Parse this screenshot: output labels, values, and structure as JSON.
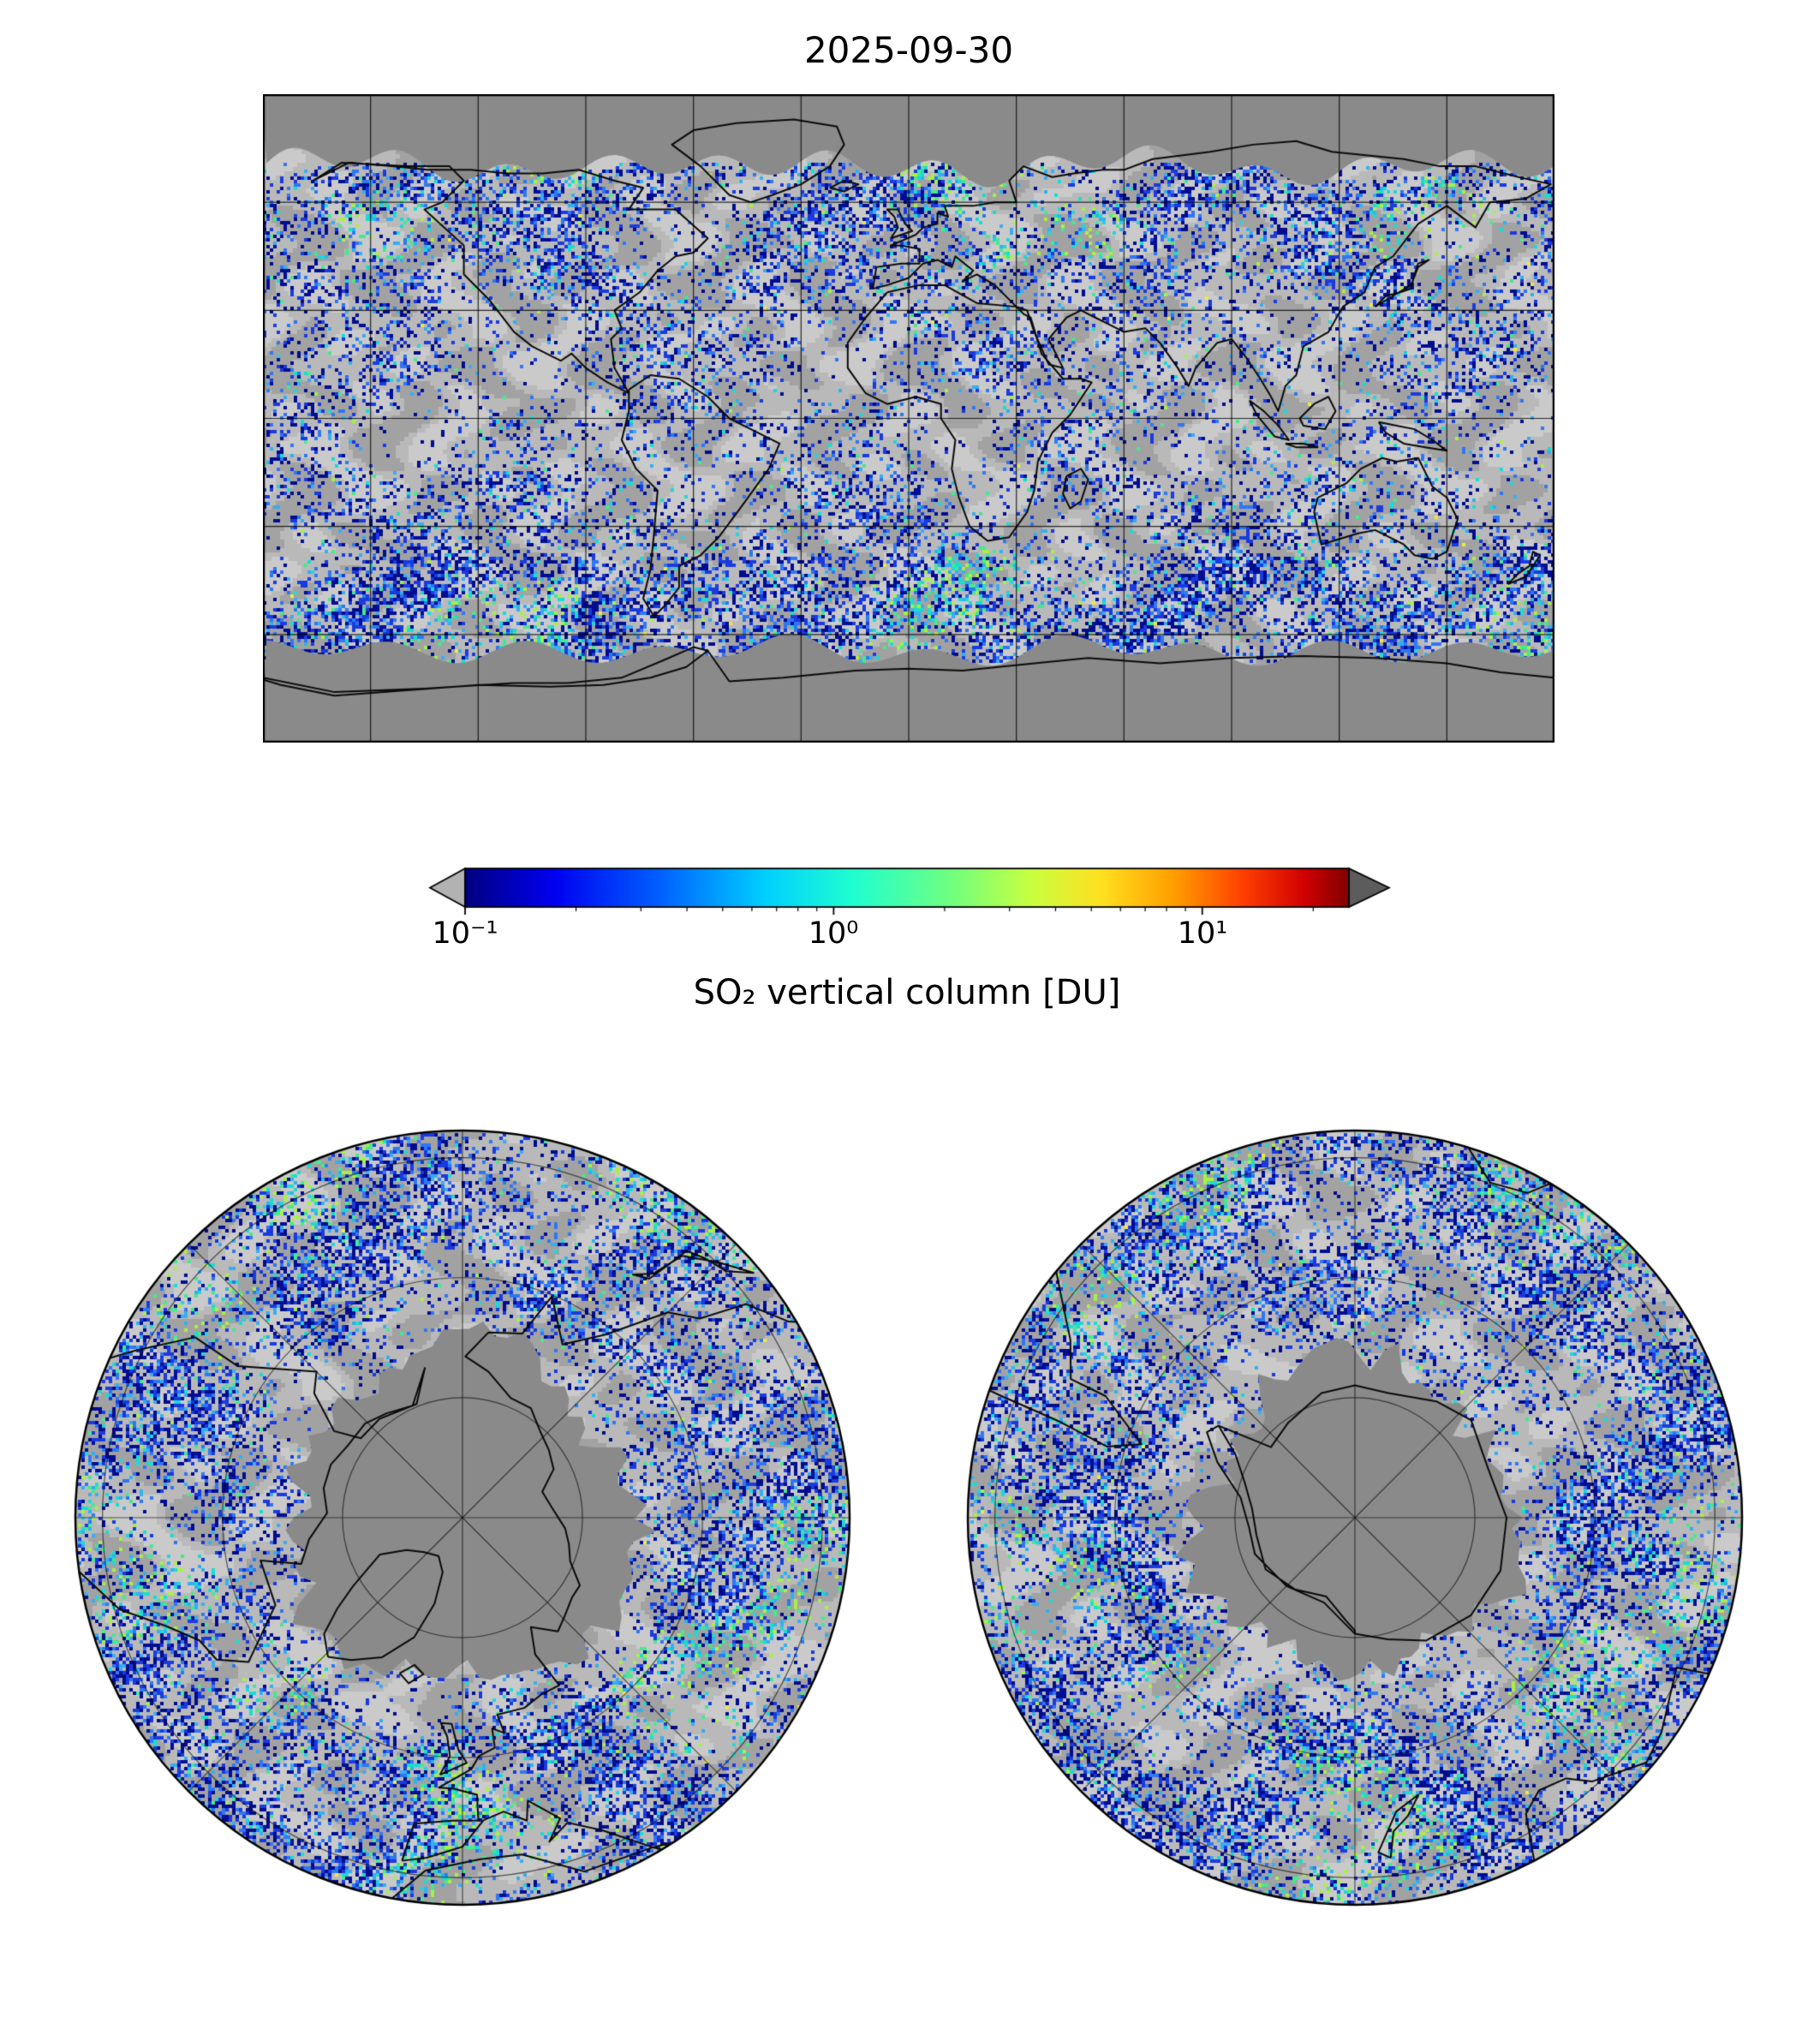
{
  "title": "2025-09-30",
  "colorbar": {
    "label": "SO₂ vertical column [DU]",
    "tick_labels": [
      "10⁻¹",
      "10⁰",
      "10¹"
    ],
    "tick_values": [
      0.1,
      1,
      10
    ],
    "minor_ticks": [
      0.2,
      0.3,
      0.4,
      0.5,
      0.6,
      0.7,
      0.8,
      0.9,
      2,
      3,
      4,
      5,
      6,
      7,
      8,
      9,
      20
    ],
    "range": [
      0.1,
      25
    ],
    "scale": "log",
    "under_color": "#b2b2b2",
    "over_color": "#5c5c5c",
    "gradient": [
      [
        0.0,
        "#000080"
      ],
      [
        0.1,
        "#0000f0"
      ],
      [
        0.22,
        "#0060ff"
      ],
      [
        0.34,
        "#00d0ff"
      ],
      [
        0.44,
        "#20ffd0"
      ],
      [
        0.55,
        "#70ff80"
      ],
      [
        0.64,
        "#c8ff40"
      ],
      [
        0.72,
        "#ffe020"
      ],
      [
        0.8,
        "#ffa000"
      ],
      [
        0.88,
        "#ff4000"
      ],
      [
        0.95,
        "#d00000"
      ],
      [
        1.0,
        "#800000"
      ]
    ]
  },
  "map_colors": {
    "base": "#b9b9b9",
    "cloud": "#a2a2a2",
    "bright": "#cacaca",
    "nodata": "#8a8a8a",
    "coast": "#0a0a0a",
    "grid": "rgba(0,0,0,0.8)"
  },
  "speckle_palette": [
    {
      "t": 0.42,
      "color": "#000d8f"
    },
    {
      "t": 0.7,
      "color": "#1a3ae0"
    },
    {
      "t": 0.86,
      "color": "#2f77f2"
    },
    {
      "t": 0.935,
      "color": "#35aef0"
    },
    {
      "t": 0.972,
      "color": "#19dcd4"
    },
    {
      "t": 0.992,
      "color": "#47e890"
    },
    {
      "t": 0.998,
      "color": "#aaee49"
    },
    {
      "t": 1.0,
      "color": "#eeea3e"
    }
  ],
  "chart_data": {
    "type": "heatmap",
    "title": "2025-09-30",
    "variable": "SO₂ vertical column",
    "units": "DU",
    "scale": "log",
    "colorbar_range": [
      0.1,
      25
    ],
    "colorbar_ticks": [
      0.1,
      1,
      10
    ],
    "legend_position": "horizontal colorbar below global map, arrows for under/over range",
    "panels": [
      {
        "name": "global",
        "projection": "equirectangular",
        "lon_range": [
          -180,
          180
        ],
        "lat_range": [
          -90,
          90
        ],
        "gridline_spacing_deg": 30,
        "grid": true,
        "no_data": "dark grey poleward of ~70N and ~65S (polar night / no retrieval)",
        "value_summary": "scattered retrievals mostly 0.1-0.5 DU (blues); enhanced 0.5-3 DU patches (cyan/green/yellow) over mid-to-high latitudes, northern Canada, southern ocean storm track and near 60S"
      },
      {
        "name": "north-polar",
        "projection": "polar stereographic (North)",
        "outer_latitude_deg": 30,
        "gridlines": "latitude circles every ~20 deg, meridians every 45 deg",
        "no_data": "central Arctic cap dark grey",
        "value_summary": "annulus of 0.1-1 DU blues with sparse cyan/green 1-3 DU clusters"
      },
      {
        "name": "south-polar",
        "projection": "polar stereographic (South)",
        "outer_latitude_deg": -30,
        "gridlines": "latitude circles every ~20 deg, meridians every 45 deg",
        "no_data": "central Antarctic cap dark grey with Antarctica coastline",
        "value_summary": "annulus of 0.1-1 DU blues with cyan/green 1-3 DU clusters near Antarctic coast"
      }
    ]
  }
}
